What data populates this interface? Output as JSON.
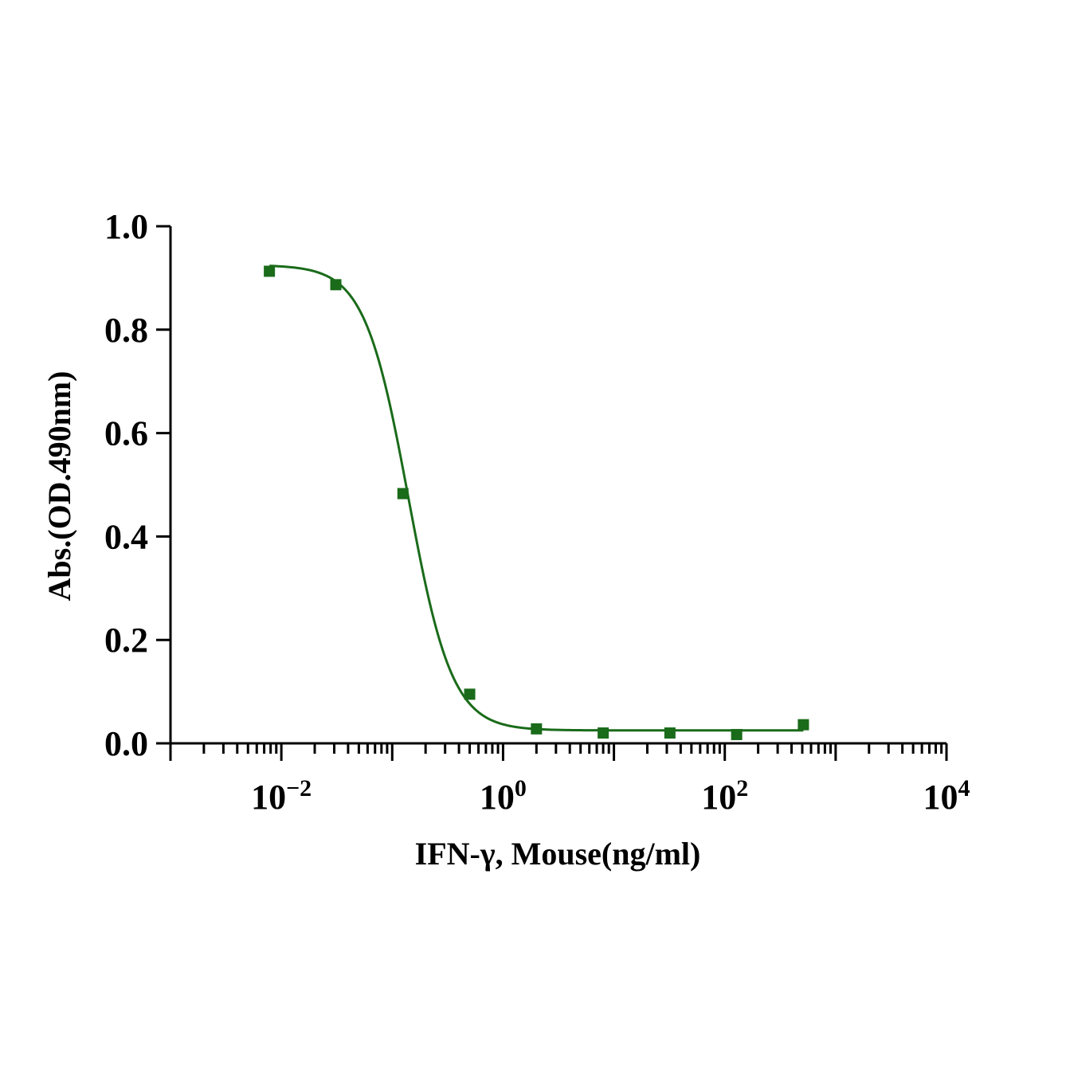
{
  "chart_data": {
    "type": "scatter",
    "title": "",
    "xlabel": "IFN-γ, Mouse(ng/ml)",
    "ylabel": "Abs.(OD.490nm)",
    "x_scale": "log10",
    "xlim": [
      0.001,
      10000
    ],
    "ylim": [
      0.0,
      1.0
    ],
    "x_ticks": [
      {
        "base": "10",
        "exp": "-2",
        "value": 0.01
      },
      {
        "base": "10",
        "exp": "0",
        "value": 1
      },
      {
        "base": "10",
        "exp": "2",
        "value": 100
      },
      {
        "base": "10",
        "exp": "4",
        "value": 10000
      }
    ],
    "y_ticks": [
      "0.0",
      "0.2",
      "0.4",
      "0.6",
      "0.8",
      "1.0"
    ],
    "grid": false,
    "color": "#1a6b1a",
    "marker": "square",
    "series": [
      {
        "x": [
          0.0078,
          0.031,
          0.125,
          0.5,
          2.0,
          8.0,
          32.0,
          128.0,
          512.0
        ],
        "y": [
          0.913,
          0.887,
          0.483,
          0.095,
          0.028,
          0.02,
          0.02,
          0.017,
          0.036
        ],
        "fit": {
          "model": "4PL",
          "top": 0.925,
          "bottom": 0.025,
          "ec50": 0.14,
          "hill": 2.2
        }
      }
    ]
  }
}
